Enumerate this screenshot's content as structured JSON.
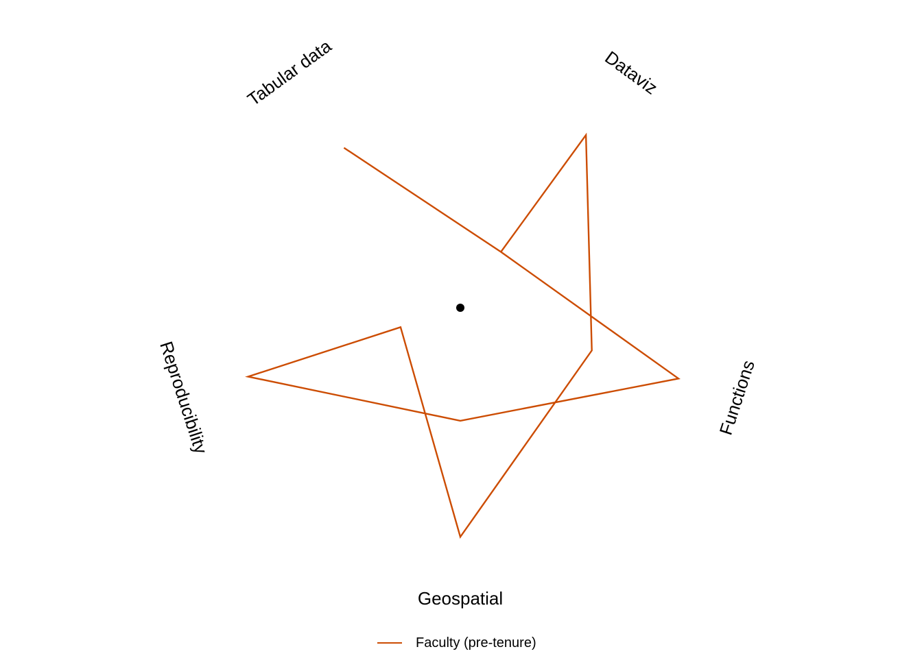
{
  "chart_data": {
    "type": "radar",
    "axes": [
      "Tabular data",
      "Dataviz",
      "Functions",
      "Geospatial",
      "Reproducibility"
    ],
    "series": [
      {
        "name": "Faculty (pre-tenure)",
        "color": "#cc4c02",
        "path": [
          {
            "axis": "Tabular data",
            "value": 0.63
          },
          {
            "axis": "Dataviz",
            "value": 0.22
          },
          {
            "axis": "Dataviz",
            "value": 0.68
          },
          {
            "axis": "Functions",
            "value": 0.44
          },
          {
            "axis": "Geospatial",
            "value": 0.73
          },
          {
            "axis": "Reproducibility",
            "value": 0.2
          },
          {
            "axis": "Reproducibility",
            "value": 0.71
          },
          {
            "axis": "Geospatial",
            "value": 0.36
          },
          {
            "axis": "Functions",
            "value": 0.73
          },
          {
            "axis": "Dataviz",
            "value": 0.22
          }
        ]
      }
    ],
    "center_point": true,
    "grid": false,
    "legend_position": "bottom"
  }
}
